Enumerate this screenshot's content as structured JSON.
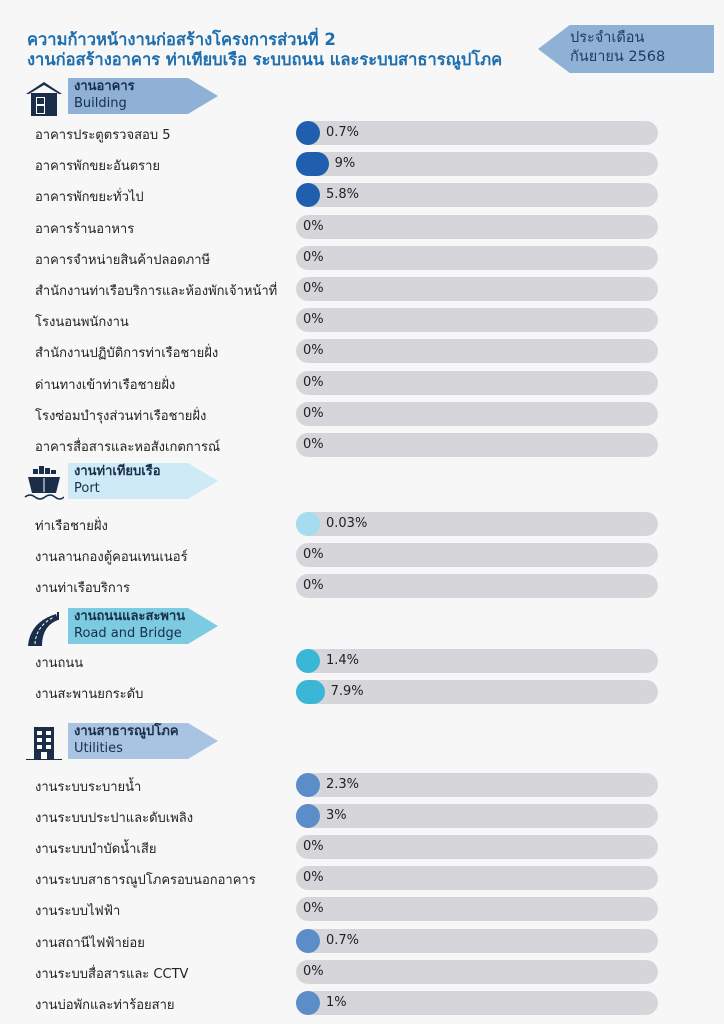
{
  "header": {
    "title_line1": "ความก้าวหน้างานก่อสร้างโครงการส่วนที่ 2",
    "title_line2": "งานก่อสร้างอาคาร ท่าเทียบเรือ ระบบถนน และระบบสาธารณูปโภค",
    "period_label": "ประจำเดือน",
    "period_value": "กันยายน 2568"
  },
  "chart_data": {
    "type": "bar",
    "orientation": "horizontal",
    "xlim": [
      0,
      100
    ],
    "unit": "%",
    "groups": [
      {
        "title_th": "งานอาคาร",
        "title_en": "Building",
        "icon": "building-icon",
        "color": "#1f5fad",
        "banner_color": "#8fb1d6",
        "items": [
          {
            "label": "อาคารประตูตรวจสอบ 5",
            "value": 0.7,
            "text": "0.7%"
          },
          {
            "label": "อาคารพักขยะอันตราย",
            "value": 9,
            "text": "9%"
          },
          {
            "label": "อาคารพักขยะทั่วไป",
            "value": 5.8,
            "text": "5.8%"
          },
          {
            "label": "อาคารร้านอาหาร",
            "value": 0,
            "text": "0%"
          },
          {
            "label": "อาคารจำหน่ายสินค้าปลอดภาษี",
            "value": 0,
            "text": "0%"
          },
          {
            "label": "สำนักงานท่าเรือบริการและห้องพักเจ้าหน้าที่",
            "value": 0,
            "text": "0%"
          },
          {
            "label": "โรงนอนพนักงาน",
            "value": 0,
            "text": "0%"
          },
          {
            "label": "สำนักงานปฏิบัติการท่าเรือชายฝั่ง",
            "value": 0,
            "text": "0%"
          },
          {
            "label": "ด่านทางเข้าท่าเรือชายฝั่ง",
            "value": 0,
            "text": "0%"
          },
          {
            "label": "โรงซ่อมบำรุงส่วนท่าเรือชายฝั่ง",
            "value": 0,
            "text": "0%"
          },
          {
            "label": "อาคารสื่อสารและหอสังเกตการณ์",
            "value": 0,
            "text": "0%"
          }
        ]
      },
      {
        "title_th": "งานท่าเทียบเรือ",
        "title_en": "Port",
        "icon": "ship-icon",
        "color": "#a6dcef",
        "banner_color": "#cdeaf6",
        "items": [
          {
            "label": "ท่าเรือชายฝั่ง",
            "value": 0.03,
            "text": "0.03%"
          },
          {
            "label": "งานลานกองตู้คอนเทนเนอร์",
            "value": 0,
            "text": "0%"
          },
          {
            "label": "งานท่าเรือบริการ",
            "value": 0,
            "text": "0%"
          }
        ]
      },
      {
        "title_th": "งานถนนและสะพาน",
        "title_en": "Road and Bridge",
        "icon": "road-icon",
        "color": "#3cb6d6",
        "banner_color": "#7ccbe1",
        "items": [
          {
            "label": "งานถนน",
            "value": 1.4,
            "text": "1.4%"
          },
          {
            "label": "งานสะพานยกระดับ",
            "value": 7.9,
            "text": "7.9%"
          }
        ]
      },
      {
        "title_th": "งานสาธารณูปโภค",
        "title_en": "Utilities",
        "icon": "utility-building-icon",
        "color": "#5b8ec8",
        "banner_color": "#a9c3e2",
        "items": [
          {
            "label": "งานระบบระบายน้ำ",
            "value": 2.3,
            "text": "2.3%"
          },
          {
            "label": "งานระบบประปาและดับเพลิง",
            "value": 3,
            "text": "3%"
          },
          {
            "label": "งานระบบบำบัดน้ำเสีย",
            "value": 0,
            "text": "0%"
          },
          {
            "label": "งานระบบสาธารณูปโภครอบนอกอาคาร",
            "value": 0,
            "text": "0%"
          },
          {
            "label": "งานระบบไฟฟ้า",
            "value": 0,
            "text": "0%"
          },
          {
            "label": "งานสถานีไฟฟ้าย่อย",
            "value": 0.7,
            "text": "0.7%"
          },
          {
            "label": "งานระบบสื่อสารและ CCTV",
            "value": 0,
            "text": "0%"
          },
          {
            "label": "งานบ่อพักและท่าร้อยสาย",
            "value": 1,
            "text": "1%"
          }
        ]
      }
    ]
  }
}
